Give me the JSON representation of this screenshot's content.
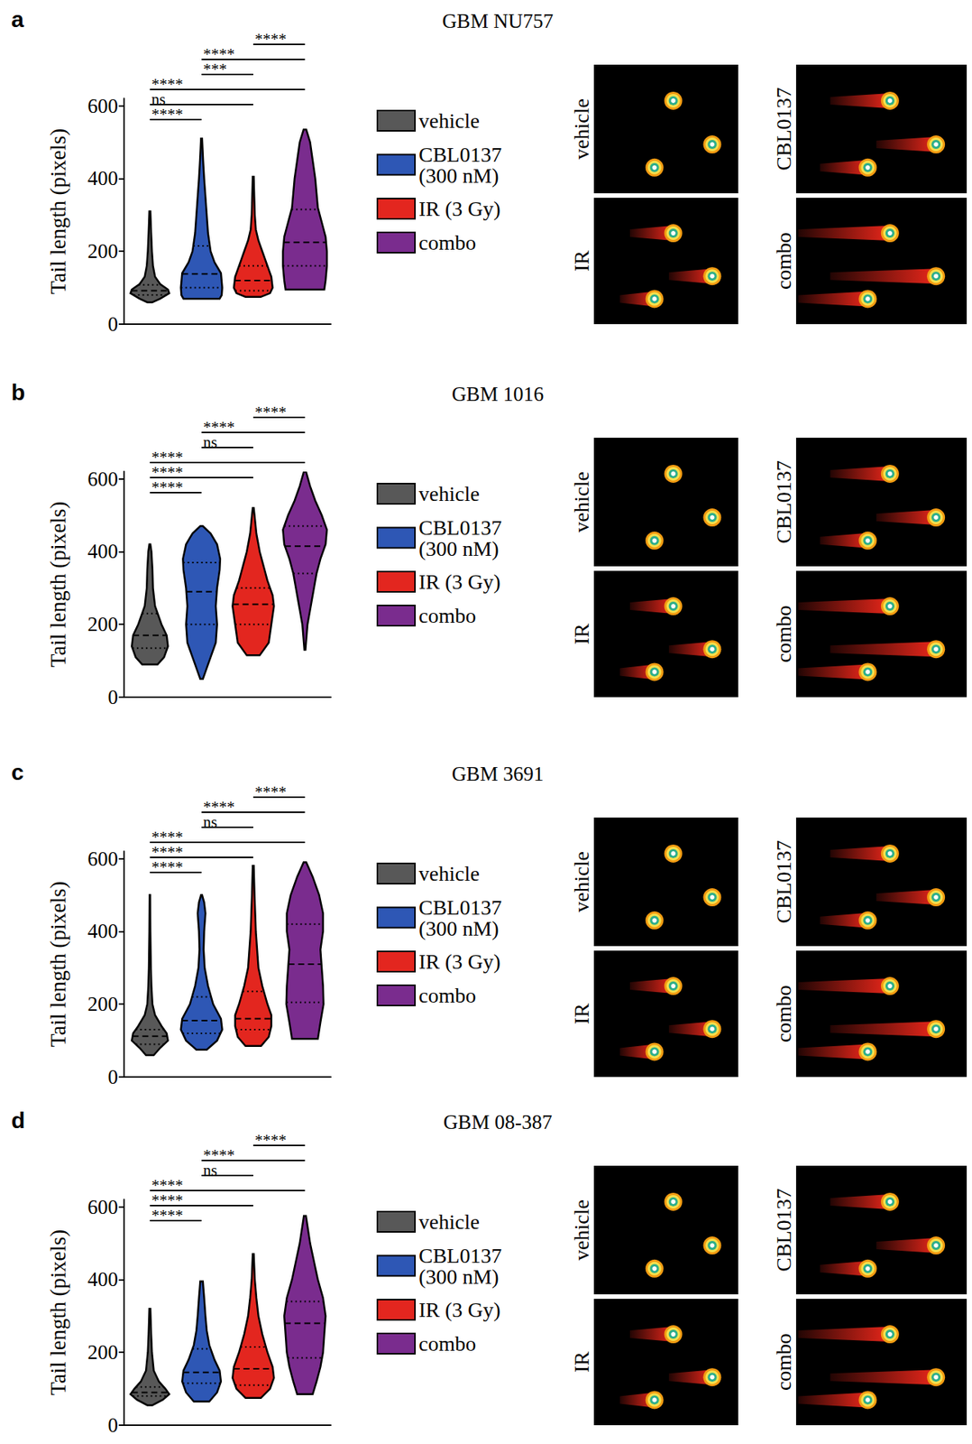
{
  "chart_data": [
    {
      "panel": "a",
      "type": "violin",
      "title": "GBM NU757",
      "y_label": "Tail length (pixels)",
      "ylim": [
        0,
        620
      ],
      "yticks": [
        0,
        200,
        400,
        600
      ],
      "grid": false,
      "tick_labels": "y",
      "legend": "right",
      "series": [
        {
          "name": "vehicle",
          "color": "#585858",
          "y": [
            60,
            70,
            85,
            95,
            110,
            130,
            160,
            200,
            250,
            310
          ],
          "density": [
            0.1,
            0.4,
            0.75,
            0.7,
            0.4,
            0.2,
            0.12,
            0.08,
            0.05,
            0.02
          ],
          "quartiles": [
            80,
            92,
            108
          ]
        },
        {
          "name": "CBL0137 (300 nM)",
          "color": "#2e57b5",
          "y": [
            70,
            80,
            100,
            140,
            170,
            200,
            250,
            300,
            350,
            400,
            450,
            510
          ],
          "density": [
            0.7,
            0.78,
            0.8,
            0.75,
            0.5,
            0.35,
            0.25,
            0.2,
            0.15,
            0.1,
            0.06,
            0.02
          ],
          "quartiles": [
            100,
            138,
            215
          ]
        },
        {
          "name": "IR (3 Gy)",
          "color": "#e3261f",
          "y": [
            75,
            85,
            100,
            130,
            160,
            200,
            230,
            260,
            300,
            350,
            405
          ],
          "density": [
            0.3,
            0.65,
            0.75,
            0.7,
            0.55,
            0.35,
            0.2,
            0.1,
            0.06,
            0.04,
            0.02
          ],
          "quartiles": [
            92,
            120,
            160
          ]
        },
        {
          "name": "combo",
          "color": "#7a2c8e",
          "y": [
            95,
            120,
            160,
            200,
            240,
            280,
            320,
            360,
            400,
            450,
            500,
            535
          ],
          "density": [
            0.75,
            0.8,
            0.85,
            0.85,
            0.8,
            0.65,
            0.5,
            0.45,
            0.4,
            0.3,
            0.2,
            0.05
          ],
          "quartiles": [
            160,
            225,
            315
          ]
        }
      ],
      "comparisons": [
        {
          "pair": [
            0,
            1
          ],
          "label": "****"
        },
        {
          "pair": [
            0,
            2
          ],
          "label": "ns"
        },
        {
          "pair": [
            0,
            3
          ],
          "label": "****"
        },
        {
          "pair": [
            1,
            2
          ],
          "label": "***"
        },
        {
          "pair": [
            1,
            3
          ],
          "label": "****"
        },
        {
          "pair": [
            2,
            3
          ],
          "label": "****"
        }
      ],
      "image_labels": [
        "vehicle",
        "CBL0137",
        "IR",
        "combo"
      ]
    },
    {
      "panel": "b",
      "type": "violin",
      "title": "GBM 1016",
      "y_label": "Tail length (pixels)",
      "ylim": [
        0,
        620
      ],
      "yticks": [
        0,
        200,
        400,
        600
      ],
      "grid": false,
      "tick_labels": "y",
      "legend": "right",
      "series": [
        {
          "name": "vehicle",
          "color": "#585858",
          "y": [
            90,
            110,
            140,
            170,
            200,
            250,
            300,
            350,
            400,
            420
          ],
          "density": [
            0.3,
            0.55,
            0.7,
            0.65,
            0.45,
            0.2,
            0.12,
            0.1,
            0.06,
            0.02
          ],
          "quartiles": [
            135,
            170,
            230
          ]
        },
        {
          "name": "CBL0137 (300 nM)",
          "color": "#2e57b5",
          "y": [
            50,
            100,
            150,
            200,
            250,
            300,
            350,
            380,
            420,
            450,
            470
          ],
          "density": [
            0.05,
            0.3,
            0.55,
            0.6,
            0.55,
            0.6,
            0.7,
            0.72,
            0.6,
            0.35,
            0.05
          ],
          "quartiles": [
            200,
            290,
            370
          ]
        },
        {
          "name": "IR (3 Gy)",
          "color": "#e3261f",
          "y": [
            115,
            150,
            200,
            250,
            280,
            320,
            360,
            400,
            450,
            500,
            520
          ],
          "density": [
            0.25,
            0.6,
            0.7,
            0.8,
            0.75,
            0.55,
            0.4,
            0.25,
            0.12,
            0.05,
            0.02
          ],
          "quartiles": [
            200,
            255,
            300
          ]
        },
        {
          "name": "combo",
          "color": "#7a2c8e",
          "y": [
            130,
            200,
            260,
            300,
            340,
            380,
            420,
            460,
            500,
            540,
            580,
            620
          ],
          "density": [
            0.02,
            0.1,
            0.25,
            0.35,
            0.45,
            0.6,
            0.8,
            0.85,
            0.65,
            0.4,
            0.2,
            0.04
          ],
          "quartiles": [
            340,
            415,
            470
          ]
        }
      ],
      "comparisons": [
        {
          "pair": [
            0,
            1
          ],
          "label": "****"
        },
        {
          "pair": [
            0,
            2
          ],
          "label": "****"
        },
        {
          "pair": [
            0,
            3
          ],
          "label": "****"
        },
        {
          "pair": [
            1,
            2
          ],
          "label": "ns"
        },
        {
          "pair": [
            1,
            3
          ],
          "label": "****"
        },
        {
          "pair": [
            2,
            3
          ],
          "label": "****"
        }
      ],
      "image_labels": [
        "vehicle",
        "CBL0137",
        "IR",
        "combo"
      ]
    },
    {
      "panel": "c",
      "type": "violin",
      "title": "GBM 3691",
      "y_label": "Tail length (pixels)",
      "ylim": [
        0,
        620
      ],
      "yticks": [
        0,
        200,
        400,
        600
      ],
      "grid": false,
      "tick_labels": "y",
      "legend": "right",
      "series": [
        {
          "name": "vehicle",
          "color": "#585858",
          "y": [
            60,
            80,
            100,
            120,
            140,
            170,
            200,
            250,
            300,
            400,
            500
          ],
          "density": [
            0.15,
            0.4,
            0.7,
            0.65,
            0.45,
            0.2,
            0.1,
            0.06,
            0.04,
            0.02,
            0.01
          ],
          "quartiles": [
            90,
            112,
            130
          ]
        },
        {
          "name": "CBL0137 (300 nM)",
          "color": "#2e57b5",
          "y": [
            75,
            100,
            130,
            160,
            200,
            250,
            300,
            350,
            400,
            450,
            480,
            500
          ],
          "density": [
            0.2,
            0.6,
            0.8,
            0.75,
            0.45,
            0.25,
            0.12,
            0.08,
            0.1,
            0.15,
            0.1,
            0.02
          ],
          "quartiles": [
            120,
            155,
            220
          ]
        },
        {
          "name": "IR (3 Gy)",
          "color": "#e3261f",
          "y": [
            85,
            110,
            140,
            170,
            200,
            250,
            300,
            350,
            400,
            500,
            580
          ],
          "density": [
            0.3,
            0.6,
            0.7,
            0.7,
            0.55,
            0.35,
            0.2,
            0.15,
            0.1,
            0.05,
            0.02
          ],
          "quartiles": [
            130,
            160,
            235
          ]
        },
        {
          "name": "combo",
          "color": "#7a2c8e",
          "y": [
            105,
            150,
            200,
            250,
            300,
            350,
            400,
            450,
            500,
            550,
            590
          ],
          "density": [
            0.5,
            0.6,
            0.72,
            0.7,
            0.65,
            0.6,
            0.7,
            0.7,
            0.55,
            0.3,
            0.05
          ],
          "quartiles": [
            205,
            310,
            420
          ]
        }
      ],
      "comparisons": [
        {
          "pair": [
            0,
            1
          ],
          "label": "****"
        },
        {
          "pair": [
            0,
            2
          ],
          "label": "****"
        },
        {
          "pair": [
            0,
            3
          ],
          "label": "****"
        },
        {
          "pair": [
            1,
            2
          ],
          "label": "ns"
        },
        {
          "pair": [
            1,
            3
          ],
          "label": "****"
        },
        {
          "pair": [
            2,
            3
          ],
          "label": "****"
        }
      ],
      "image_labels": [
        "vehicle",
        "CBL0137",
        "IR",
        "combo"
      ]
    },
    {
      "panel": "d",
      "type": "violin",
      "title": "GBM 08-387",
      "y_label": "Tail length (pixels)",
      "ylim": [
        0,
        620
      ],
      "yticks": [
        0,
        200,
        400,
        600
      ],
      "grid": false,
      "tick_labels": "y",
      "legend": "right",
      "series": [
        {
          "name": "vehicle",
          "color": "#585858",
          "y": [
            55,
            70,
            85,
            100,
            120,
            150,
            200,
            250,
            320
          ],
          "density": [
            0.1,
            0.5,
            0.75,
            0.6,
            0.35,
            0.15,
            0.08,
            0.05,
            0.02
          ],
          "quartiles": [
            80,
            90,
            105
          ]
        },
        {
          "name": "CBL0137 (300 nM)",
          "color": "#2e57b5",
          "y": [
            65,
            90,
            120,
            150,
            180,
            220,
            260,
            300,
            350,
            395
          ],
          "density": [
            0.3,
            0.6,
            0.75,
            0.7,
            0.5,
            0.3,
            0.2,
            0.15,
            0.1,
            0.05
          ],
          "quartiles": [
            115,
            145,
            210
          ]
        },
        {
          "name": "IR (3 Gy)",
          "color": "#e3261f",
          "y": [
            75,
            100,
            130,
            160,
            200,
            250,
            300,
            350,
            400,
            470
          ],
          "density": [
            0.3,
            0.65,
            0.8,
            0.75,
            0.55,
            0.35,
            0.2,
            0.12,
            0.06,
            0.02
          ],
          "quartiles": [
            110,
            155,
            215
          ]
        },
        {
          "name": "combo",
          "color": "#7a2c8e",
          "y": [
            85,
            120,
            160,
            200,
            250,
            300,
            350,
            400,
            450,
            500,
            575
          ],
          "density": [
            0.3,
            0.45,
            0.6,
            0.7,
            0.75,
            0.8,
            0.7,
            0.5,
            0.35,
            0.2,
            0.04
          ],
          "quartiles": [
            185,
            280,
            340
          ]
        }
      ],
      "comparisons": [
        {
          "pair": [
            0,
            1
          ],
          "label": "****"
        },
        {
          "pair": [
            0,
            2
          ],
          "label": "****"
        },
        {
          "pair": [
            0,
            3
          ],
          "label": "****"
        },
        {
          "pair": [
            1,
            2
          ],
          "label": "ns"
        },
        {
          "pair": [
            1,
            3
          ],
          "label": "****"
        },
        {
          "pair": [
            2,
            3
          ],
          "label": "****"
        }
      ],
      "image_labels": [
        "vehicle",
        "CBL0137",
        "IR",
        "combo"
      ]
    }
  ]
}
